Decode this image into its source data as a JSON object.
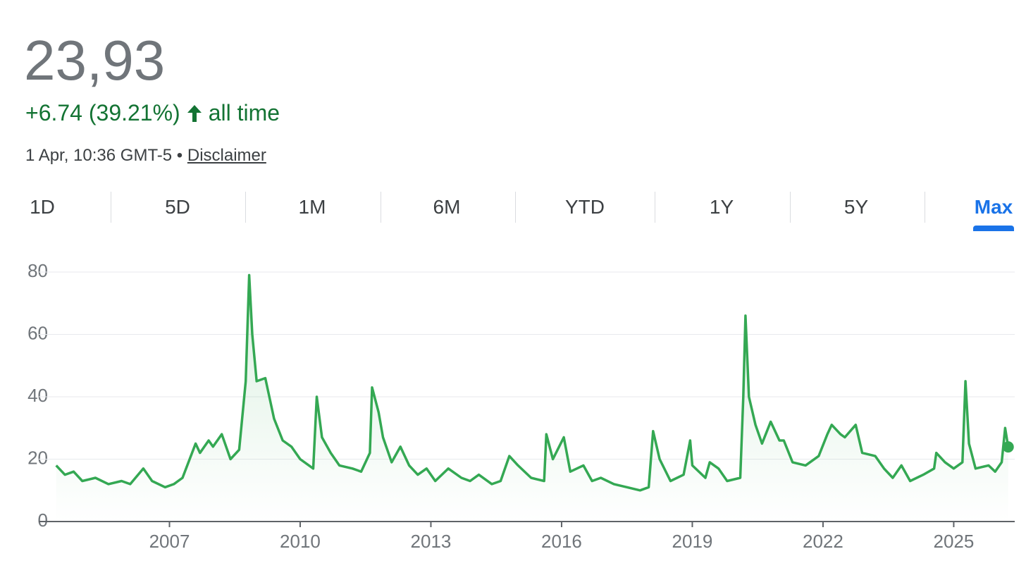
{
  "header": {
    "price": "23,93",
    "change": "+6.74 (39.21%)",
    "period": "all time",
    "timestamp": "1 Apr, 10:36 GMT-5 •",
    "disclaimer": "Disclaimer"
  },
  "tabs": [
    "1D",
    "5D",
    "1M",
    "6M",
    "YTD",
    "1Y",
    "5Y",
    "Max"
  ],
  "active_tab": 7,
  "chart_data": {
    "type": "line",
    "x": [
      2004.4,
      2004.6,
      2004.8,
      2005.0,
      2005.3,
      2005.6,
      2005.9,
      2006.1,
      2006.4,
      2006.6,
      2006.9,
      2007.1,
      2007.3,
      2007.6,
      2007.7,
      2007.9,
      2008.0,
      2008.2,
      2008.4,
      2008.6,
      2008.75,
      2008.83,
      2008.9,
      2009.0,
      2009.2,
      2009.4,
      2009.6,
      2009.8,
      2010.0,
      2010.3,
      2010.38,
      2010.5,
      2010.7,
      2010.9,
      2011.2,
      2011.4,
      2011.6,
      2011.65,
      2011.8,
      2011.9,
      2012.1,
      2012.3,
      2012.5,
      2012.7,
      2012.9,
      2013.1,
      2013.4,
      2013.7,
      2013.9,
      2014.1,
      2014.4,
      2014.6,
      2014.8,
      2015.0,
      2015.3,
      2015.6,
      2015.65,
      2015.8,
      2016.05,
      2016.2,
      2016.5,
      2016.7,
      2016.9,
      2017.2,
      2017.5,
      2017.8,
      2018.0,
      2018.1,
      2018.25,
      2018.5,
      2018.8,
      2018.95,
      2019.0,
      2019.3,
      2019.4,
      2019.6,
      2019.8,
      2020.1,
      2020.17,
      2020.22,
      2020.3,
      2020.45,
      2020.6,
      2020.8,
      2021.0,
      2021.1,
      2021.3,
      2021.6,
      2021.9,
      2022.1,
      2022.2,
      2022.4,
      2022.5,
      2022.75,
      2022.9,
      2023.2,
      2023.4,
      2023.6,
      2023.8,
      2024.0,
      2024.3,
      2024.55,
      2024.6,
      2024.8,
      2025.0,
      2025.2,
      2025.27,
      2025.35,
      2025.5,
      2025.8,
      2025.95,
      2026.1,
      2026.18,
      2026.25
    ],
    "values": [
      18,
      15,
      16,
      13,
      14,
      12,
      13,
      12,
      17,
      13,
      11,
      12,
      14,
      25,
      22,
      26,
      24,
      28,
      20,
      23,
      45,
      79,
      60,
      45,
      46,
      33,
      26,
      24,
      20,
      17,
      40,
      27,
      22,
      18,
      17,
      16,
      22,
      43,
      35,
      27,
      19,
      24,
      18,
      15,
      17,
      13,
      17,
      14,
      13,
      15,
      12,
      13,
      21,
      18,
      14,
      13,
      28,
      20,
      27,
      16,
      18,
      13,
      14,
      12,
      11,
      10,
      11,
      29,
      20,
      13,
      15,
      26,
      18,
      14,
      19,
      17,
      13,
      14,
      40,
      66,
      40,
      31,
      25,
      32,
      26,
      26,
      19,
      18,
      21,
      28,
      31,
      28,
      27,
      31,
      22,
      21,
      17,
      14,
      18,
      13,
      15,
      17,
      22,
      19,
      17,
      19,
      45,
      25,
      17,
      18,
      16,
      19,
      30,
      23.93
    ],
    "color": "#34a853",
    "xlim": [
      2004,
      2026.4
    ],
    "xticks": [
      2007,
      2010,
      2013,
      2016,
      2019,
      2022,
      2025
    ],
    "ylim": [
      0,
      80
    ],
    "yticks": [
      0,
      20,
      40,
      60,
      80
    ],
    "grid": true
  }
}
